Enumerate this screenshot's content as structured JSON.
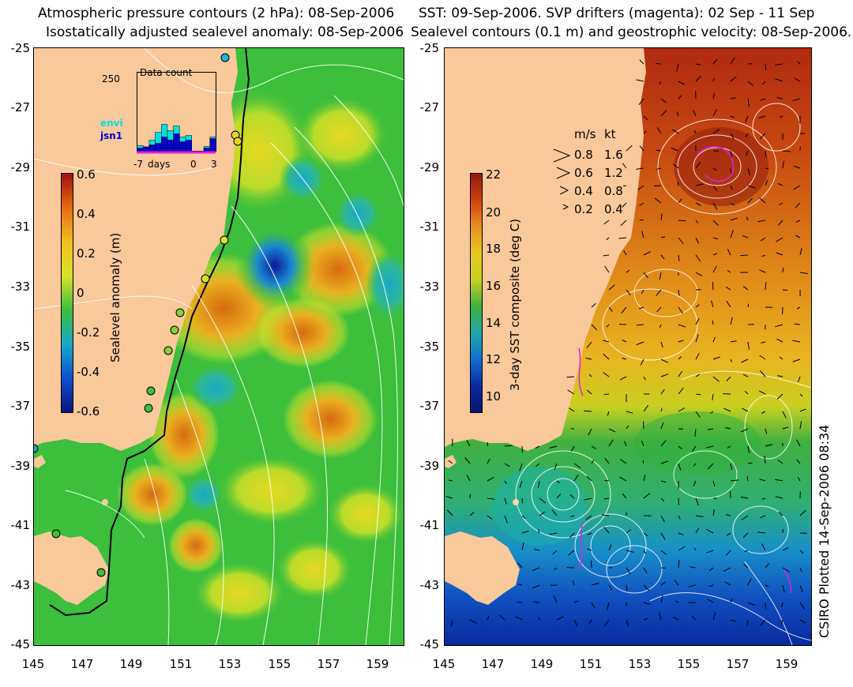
{
  "left_panel": {
    "title_line1": "Atmospheric pressure contours (2 hPa): 08-Sep-2006",
    "title_line2": "Isostatically adjusted sealevel anomaly: 08-Sep-2006",
    "colorbar": {
      "title": "Sealevel anomaly (m)",
      "ticks": [
        "0.6",
        "0.4",
        "0.2",
        "0",
        "-0.2",
        "-0.4",
        "-0.6"
      ],
      "range": [
        -0.6,
        0.6
      ]
    },
    "histogram": {
      "y_label": "250",
      "title": "Data count",
      "series": [
        {
          "name": "envi",
          "color": "#00e0e0",
          "values": [
            18,
            12,
            35,
            60,
            85,
            65,
            80,
            45,
            50,
            0,
            0,
            15,
            45
          ]
        },
        {
          "name": "jsn1",
          "color": "#0000cc",
          "values": [
            10,
            14,
            20,
            25,
            45,
            35,
            55,
            30,
            35,
            0,
            0,
            10,
            40
          ]
        }
      ],
      "x_ticks": [
        "-7",
        "0",
        "3"
      ],
      "x_label": "days"
    }
  },
  "right_panel": {
    "title_line1": "SST: 09-Sep-2006. SVP drifters (magenta): 02 Sep - 11 Sep",
    "title_line2": "Sealevel contours (0.1 m) and geostrophic velocity: 08-Sep-2006.",
    "colorbar": {
      "title": "3-day SST composite (deg C)",
      "ticks": [
        "22",
        "20",
        "18",
        "16",
        "14",
        "12",
        "10"
      ],
      "range": [
        9,
        22
      ]
    },
    "velocity_legend": {
      "header_ms": "m/s",
      "header_kt": "kt",
      "rows": [
        {
          "ms": "0.8",
          "kt": "1.6"
        },
        {
          "ms": "0.6",
          "kt": "1.2"
        },
        {
          "ms": "0.4",
          "kt": "0.8"
        },
        {
          "ms": "0.2",
          "kt": "0.4"
        }
      ]
    }
  },
  "axes": {
    "lat_ticks": [
      "-25",
      "-27",
      "-29",
      "-31",
      "-33",
      "-35",
      "-37",
      "-39",
      "-41",
      "-43",
      "-45"
    ],
    "lon_ticks": [
      "145",
      "147",
      "149",
      "151",
      "153",
      "155",
      "157",
      "159"
    ],
    "lat_range": [
      -45,
      -25
    ],
    "lon_range": [
      145,
      160
    ]
  },
  "credit": "CSIRO Plotted 14-Sep-2006 08:34",
  "colors": {
    "land": "#f9c89b",
    "ocean_green": "#3cbf3c",
    "ocean_yellow": "#d6e22a"
  }
}
